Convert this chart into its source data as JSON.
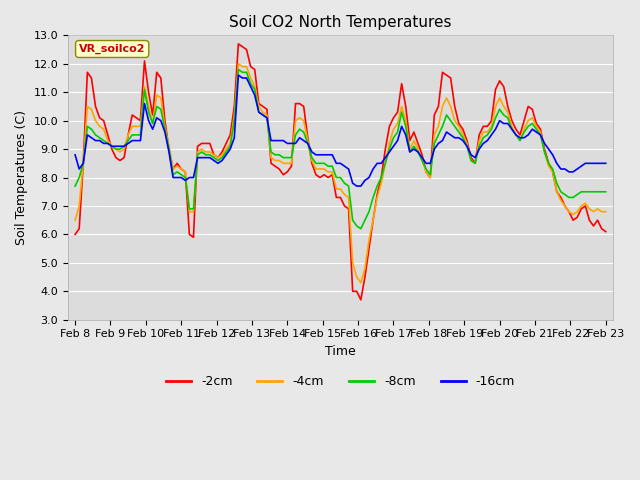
{
  "title": "Soil CO2 North Temperatures",
  "xlabel": "Time",
  "ylabel": "Soil Temperatures (C)",
  "ylim": [
    3.0,
    13.0
  ],
  "yticks": [
    3.0,
    4.0,
    5.0,
    6.0,
    7.0,
    8.0,
    9.0,
    10.0,
    11.0,
    12.0,
    13.0
  ],
  "date_labels": [
    "Feb 8",
    "Feb 9",
    "Feb 10",
    "Feb 11",
    "Feb 12",
    "Feb 13",
    "Feb 14",
    "Feb 15",
    "Feb 16",
    "Feb 17",
    "Feb 18",
    "Feb 19",
    "Feb 20",
    "Feb 21",
    "Feb 22",
    "Feb 23"
  ],
  "colors": {
    "-2cm": "#ff0000",
    "-4cm": "#ffa500",
    "-8cm": "#00cc00",
    "-16cm": "#0000ff"
  },
  "legend_label": "VR_soilco2",
  "bg_color": "#e8e8e8",
  "plot_bg": "#dcdcdc",
  "title_fontsize": 11,
  "label_fontsize": 9,
  "tick_fontsize": 8,
  "linewidth": 1.2,
  "series": {
    "-2cm": [
      6.0,
      6.2,
      8.5,
      11.7,
      11.5,
      10.5,
      10.1,
      10.0,
      9.5,
      9.0,
      8.7,
      8.6,
      8.7,
      9.5,
      10.2,
      10.1,
      10.0,
      12.1,
      11.0,
      10.2,
      11.7,
      11.5,
      10.0,
      9.0,
      8.3,
      8.5,
      8.3,
      8.2,
      6.0,
      5.9,
      9.1,
      9.2,
      9.2,
      9.2,
      8.8,
      8.7,
      8.9,
      9.2,
      9.5,
      10.5,
      12.7,
      12.6,
      12.5,
      11.9,
      11.8,
      10.6,
      10.5,
      10.4,
      8.5,
      8.4,
      8.3,
      8.1,
      8.2,
      8.4,
      10.6,
      10.6,
      10.5,
      9.4,
      8.5,
      8.1,
      8.0,
      8.1,
      8.0,
      8.1,
      7.3,
      7.3,
      7.0,
      6.9,
      4.0,
      4.0,
      3.7,
      4.5,
      5.5,
      6.5,
      7.4,
      8.0,
      9.0,
      9.8,
      10.1,
      10.3,
      11.3,
      10.5,
      9.3,
      9.6,
      9.2,
      8.8,
      8.2,
      8.0,
      10.2,
      10.5,
      11.7,
      11.6,
      11.5,
      10.5,
      9.9,
      9.7,
      9.3,
      8.7,
      8.5,
      9.5,
      9.8,
      9.8,
      10.0,
      11.1,
      11.4,
      11.2,
      10.5,
      10.0,
      9.7,
      9.5,
      10.0,
      10.5,
      10.4,
      9.9,
      9.7,
      9.0,
      8.5,
      8.2,
      7.5,
      7.3,
      7.0,
      6.8,
      6.5,
      6.6,
      6.9,
      7.0,
      6.5,
      6.3,
      6.5,
      6.2,
      6.1
    ],
    "-4cm": [
      6.5,
      7.0,
      8.5,
      10.5,
      10.4,
      10.0,
      9.8,
      9.7,
      9.3,
      9.1,
      9.0,
      8.9,
      9.0,
      9.5,
      9.8,
      9.8,
      9.8,
      11.2,
      10.5,
      9.9,
      10.9,
      10.8,
      9.8,
      9.1,
      8.3,
      8.4,
      8.3,
      8.2,
      6.8,
      6.8,
      8.9,
      9.0,
      8.9,
      8.9,
      8.8,
      8.7,
      8.8,
      9.0,
      9.2,
      10.2,
      12.0,
      11.9,
      11.9,
      11.5,
      11.2,
      10.5,
      10.3,
      10.2,
      8.7,
      8.6,
      8.6,
      8.5,
      8.5,
      8.5,
      10.0,
      10.1,
      10.0,
      9.3,
      8.6,
      8.3,
      8.3,
      8.3,
      8.2,
      8.2,
      7.6,
      7.6,
      7.4,
      7.3,
      5.0,
      4.5,
      4.3,
      4.8,
      5.8,
      6.5,
      7.3,
      7.8,
      8.5,
      9.2,
      9.7,
      9.9,
      10.5,
      10.0,
      9.0,
      9.3,
      9.0,
      8.6,
      8.2,
      8.0,
      9.5,
      9.8,
      10.5,
      10.8,
      10.5,
      10.0,
      9.8,
      9.5,
      9.2,
      8.6,
      8.5,
      9.3,
      9.6,
      9.6,
      9.8,
      10.5,
      10.8,
      10.5,
      10.3,
      9.8,
      9.5,
      9.3,
      9.7,
      10.0,
      10.1,
      9.8,
      9.6,
      8.9,
      8.4,
      8.2,
      7.5,
      7.2,
      7.0,
      6.8,
      6.7,
      6.8,
      7.0,
      7.1,
      6.9,
      6.8,
      6.9,
      6.8,
      6.8
    ],
    "-8cm": [
      7.7,
      8.0,
      8.5,
      9.8,
      9.7,
      9.5,
      9.4,
      9.3,
      9.2,
      9.1,
      9.0,
      9.0,
      9.1,
      9.3,
      9.5,
      9.5,
      9.5,
      11.1,
      10.3,
      9.9,
      10.5,
      10.4,
      9.7,
      9.0,
      8.1,
      8.2,
      8.1,
      8.0,
      6.9,
      6.9,
      8.8,
      8.9,
      8.8,
      8.8,
      8.7,
      8.6,
      8.7,
      8.9,
      9.1,
      10.0,
      11.8,
      11.7,
      11.7,
      11.3,
      11.1,
      10.3,
      10.2,
      10.1,
      8.9,
      8.8,
      8.8,
      8.7,
      8.7,
      8.7,
      9.5,
      9.7,
      9.6,
      9.2,
      8.7,
      8.5,
      8.5,
      8.5,
      8.4,
      8.4,
      8.0,
      8.0,
      7.8,
      7.7,
      6.5,
      6.3,
      6.2,
      6.5,
      6.8,
      7.3,
      7.7,
      8.0,
      8.5,
      9.0,
      9.4,
      9.6,
      10.3,
      9.8,
      8.9,
      9.1,
      8.9,
      8.6,
      8.3,
      8.1,
      9.2,
      9.5,
      9.8,
      10.2,
      10.0,
      9.8,
      9.6,
      9.4,
      9.1,
      8.6,
      8.5,
      9.1,
      9.4,
      9.5,
      9.7,
      10.1,
      10.4,
      10.2,
      10.1,
      9.7,
      9.5,
      9.3,
      9.6,
      9.8,
      9.9,
      9.7,
      9.5,
      8.9,
      8.5,
      8.3,
      7.8,
      7.5,
      7.4,
      7.3,
      7.3,
      7.4,
      7.5,
      7.5,
      7.5,
      7.5,
      7.5,
      7.5,
      7.5
    ],
    "-16cm": [
      8.8,
      8.3,
      8.5,
      9.5,
      9.4,
      9.3,
      9.3,
      9.2,
      9.2,
      9.1,
      9.1,
      9.1,
      9.1,
      9.2,
      9.3,
      9.3,
      9.3,
      10.6,
      10.0,
      9.7,
      10.1,
      10.0,
      9.6,
      8.9,
      8.0,
      8.0,
      8.0,
      7.9,
      8.0,
      8.0,
      8.7,
      8.7,
      8.7,
      8.7,
      8.6,
      8.5,
      8.6,
      8.8,
      9.0,
      9.4,
      11.6,
      11.5,
      11.5,
      11.2,
      10.9,
      10.3,
      10.2,
      10.1,
      9.3,
      9.3,
      9.3,
      9.3,
      9.2,
      9.2,
      9.2,
      9.4,
      9.3,
      9.2,
      8.9,
      8.8,
      8.8,
      8.8,
      8.8,
      8.8,
      8.5,
      8.5,
      8.4,
      8.3,
      7.8,
      7.7,
      7.7,
      7.9,
      8.0,
      8.3,
      8.5,
      8.5,
      8.7,
      8.9,
      9.1,
      9.3,
      9.8,
      9.5,
      8.9,
      9.0,
      8.9,
      8.7,
      8.5,
      8.5,
      9.0,
      9.2,
      9.3,
      9.6,
      9.5,
      9.4,
      9.4,
      9.3,
      9.1,
      8.8,
      8.7,
      9.0,
      9.2,
      9.3,
      9.5,
      9.7,
      10.0,
      9.9,
      9.9,
      9.7,
      9.5,
      9.4,
      9.4,
      9.5,
      9.7,
      9.6,
      9.5,
      9.2,
      9.0,
      8.8,
      8.5,
      8.3,
      8.3,
      8.2,
      8.2,
      8.3,
      8.4,
      8.5,
      8.5,
      8.5,
      8.5,
      8.5,
      8.5
    ]
  }
}
